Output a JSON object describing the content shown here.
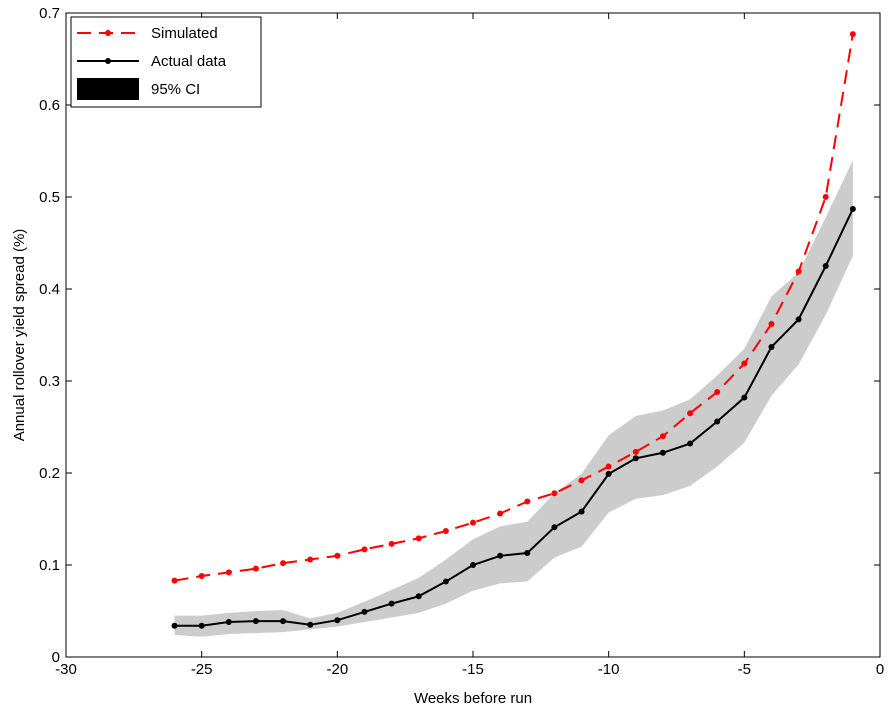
{
  "chart_data": {
    "type": "line",
    "title": "",
    "xlabel": "Weeks before run",
    "ylabel": "Annual rollover yield spread (%)",
    "xlim": [
      -30,
      0
    ],
    "ylim": [
      0,
      0.7
    ],
    "xticks": [
      -30,
      -25,
      -20,
      -15,
      -10,
      -5,
      0
    ],
    "yticks": [
      0,
      0.1,
      0.2,
      0.3,
      0.4,
      0.5,
      0.6,
      0.7
    ],
    "xtick_labels": [
      "-30",
      "-25",
      "-20",
      "-15",
      "-10",
      "-5",
      "0"
    ],
    "ytick_labels": [
      "0",
      "0.1",
      "0.2",
      "0.3",
      "0.4",
      "0.5",
      "0.6",
      "0.7"
    ],
    "grid": false,
    "legend_position": "top-left",
    "x": [
      -26,
      -25,
      -24,
      -23,
      -22,
      -21,
      -20,
      -19,
      -18,
      -17,
      -16,
      -15,
      -14,
      -13,
      -12,
      -11,
      -10,
      -9,
      -8,
      -7,
      -6,
      -5,
      -4,
      -3,
      -2,
      -1
    ],
    "series": [
      {
        "name": "Simulated",
        "color": "#ff0000",
        "style": "dashed",
        "marker": "dot",
        "values": [
          0.083,
          0.088,
          0.092,
          0.096,
          0.102,
          0.106,
          0.11,
          0.117,
          0.123,
          0.129,
          0.137,
          0.146,
          0.156,
          0.169,
          0.178,
          0.192,
          0.207,
          0.223,
          0.24,
          0.265,
          0.288,
          0.319,
          0.362,
          0.419,
          0.5,
          0.677
        ]
      },
      {
        "name": "Actual data",
        "color": "#000000",
        "style": "solid",
        "marker": "dot",
        "values": [
          0.034,
          0.034,
          0.038,
          0.039,
          0.039,
          0.035,
          0.04,
          0.049,
          0.058,
          0.066,
          0.082,
          0.1,
          0.11,
          0.113,
          0.141,
          0.158,
          0.199,
          0.216,
          0.222,
          0.232,
          0.256,
          0.282,
          0.337,
          0.367,
          0.425,
          0.487
        ]
      },
      {
        "name": "95% CI",
        "type": "band",
        "color": "#cccccc",
        "lower": [
          0.024,
          0.022,
          0.025,
          0.026,
          0.027,
          0.03,
          0.033,
          0.038,
          0.043,
          0.048,
          0.058,
          0.072,
          0.08,
          0.082,
          0.108,
          0.12,
          0.157,
          0.172,
          0.176,
          0.186,
          0.207,
          0.233,
          0.284,
          0.318,
          0.372,
          0.436
        ],
        "upper": [
          0.045,
          0.045,
          0.048,
          0.05,
          0.051,
          0.042,
          0.048,
          0.06,
          0.073,
          0.086,
          0.106,
          0.128,
          0.142,
          0.147,
          0.178,
          0.199,
          0.241,
          0.262,
          0.268,
          0.28,
          0.306,
          0.335,
          0.392,
          0.418,
          0.478,
          0.54
        ]
      }
    ]
  }
}
